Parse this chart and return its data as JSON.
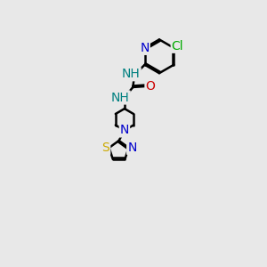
{
  "bg_color": "#e8e8e8",
  "bond_color": "#000000",
  "bond_width": 1.8,
  "atom_colors": {
    "N": "#0000cc",
    "O": "#cc0000",
    "S": "#ccaa00",
    "Cl": "#00aa00",
    "C": "#000000",
    "H": "#008080"
  },
  "font_size": 10,
  "fig_size": [
    3.0,
    3.0
  ],
  "dpi": 100,
  "xlim": [
    -1.5,
    5.5
  ],
  "ylim": [
    -8.5,
    2.5
  ]
}
